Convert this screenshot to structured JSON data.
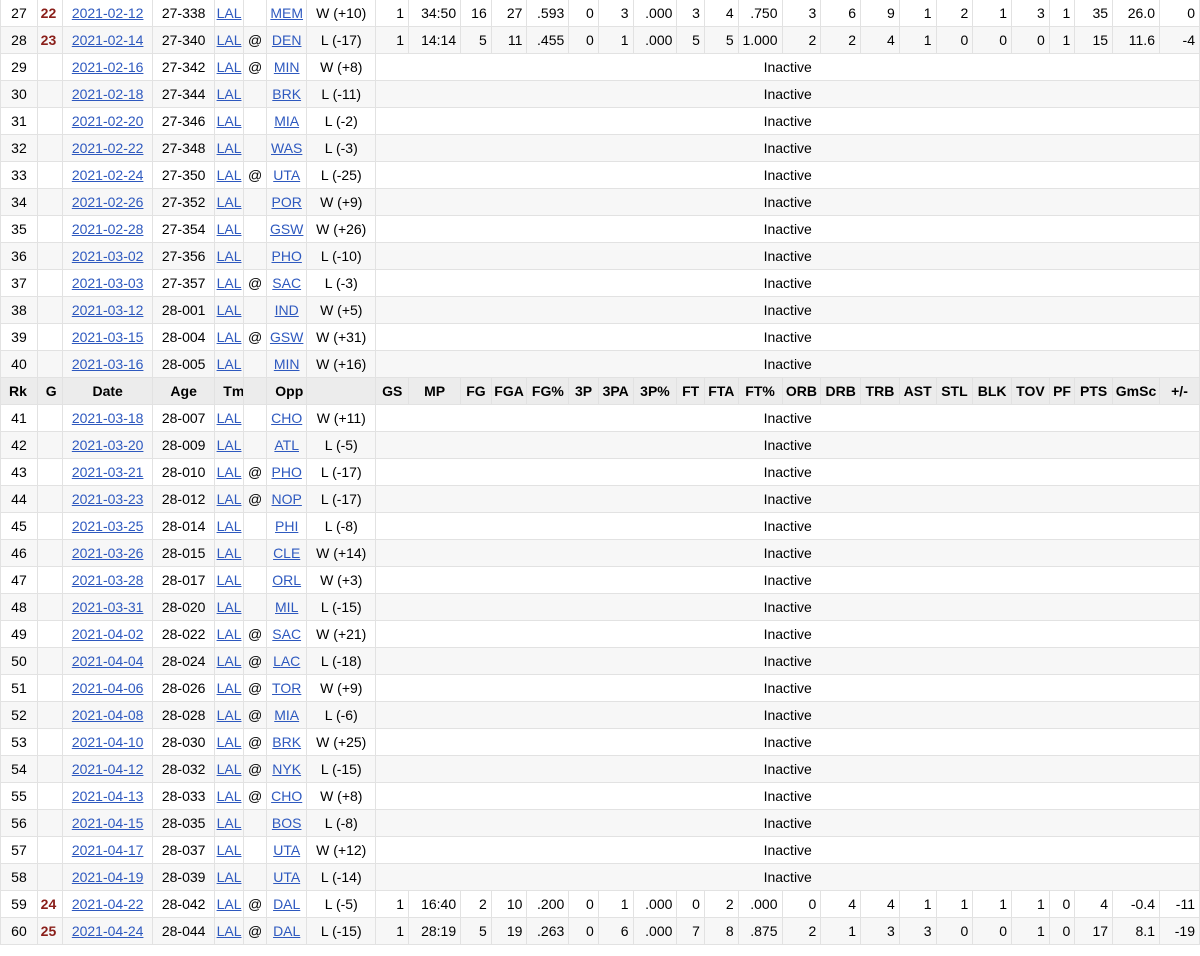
{
  "header": [
    "Rk",
    "G",
    "Date",
    "Age",
    "Tm",
    "",
    "Opp",
    "",
    "GS",
    "MP",
    "FG",
    "FGA",
    "FG%",
    "3P",
    "3PA",
    "3P%",
    "FT",
    "FTA",
    "FT%",
    "ORB",
    "DRB",
    "TRB",
    "AST",
    "STL",
    "BLK",
    "TOV",
    "PF",
    "PTS",
    "GmSc",
    "+/-"
  ],
  "inactive_label": "Inactive",
  "rows_top": [
    {
      "rk": "27",
      "g": "22",
      "date": "2021-02-12",
      "age": "27-338",
      "tm": "LAL",
      "at": "",
      "opp": "MEM",
      "res": "W (+10)",
      "stats": [
        "1",
        "34:50",
        "16",
        "27",
        ".593",
        "0",
        "3",
        ".000",
        "3",
        "4",
        ".750",
        "3",
        "6",
        "9",
        "1",
        "2",
        "1",
        "3",
        "1",
        "35",
        "26.0",
        "0"
      ]
    },
    {
      "rk": "28",
      "g": "23",
      "date": "2021-02-14",
      "age": "27-340",
      "tm": "LAL",
      "at": "@",
      "opp": "DEN",
      "res": "L (-17)",
      "stats": [
        "1",
        "14:14",
        "5",
        "11",
        ".455",
        "0",
        "1",
        ".000",
        "5",
        "5",
        "1.000",
        "2",
        "2",
        "4",
        "1",
        "0",
        "0",
        "0",
        "1",
        "15",
        "11.6",
        "-4"
      ]
    },
    {
      "rk": "29",
      "g": "",
      "date": "2021-02-16",
      "age": "27-342",
      "tm": "LAL",
      "at": "@",
      "opp": "MIN",
      "res": "W (+8)",
      "stats": null
    },
    {
      "rk": "30",
      "g": "",
      "date": "2021-02-18",
      "age": "27-344",
      "tm": "LAL",
      "at": "",
      "opp": "BRK",
      "res": "L (-11)",
      "stats": null
    },
    {
      "rk": "31",
      "g": "",
      "date": "2021-02-20",
      "age": "27-346",
      "tm": "LAL",
      "at": "",
      "opp": "MIA",
      "res": "L (-2)",
      "stats": null
    },
    {
      "rk": "32",
      "g": "",
      "date": "2021-02-22",
      "age": "27-348",
      "tm": "LAL",
      "at": "",
      "opp": "WAS",
      "res": "L (-3)",
      "stats": null
    },
    {
      "rk": "33",
      "g": "",
      "date": "2021-02-24",
      "age": "27-350",
      "tm": "LAL",
      "at": "@",
      "opp": "UTA",
      "res": "L (-25)",
      "stats": null
    },
    {
      "rk": "34",
      "g": "",
      "date": "2021-02-26",
      "age": "27-352",
      "tm": "LAL",
      "at": "",
      "opp": "POR",
      "res": "W (+9)",
      "stats": null
    },
    {
      "rk": "35",
      "g": "",
      "date": "2021-02-28",
      "age": "27-354",
      "tm": "LAL",
      "at": "",
      "opp": "GSW",
      "res": "W (+26)",
      "stats": null
    },
    {
      "rk": "36",
      "g": "",
      "date": "2021-03-02",
      "age": "27-356",
      "tm": "LAL",
      "at": "",
      "opp": "PHO",
      "res": "L (-10)",
      "stats": null
    },
    {
      "rk": "37",
      "g": "",
      "date": "2021-03-03",
      "age": "27-357",
      "tm": "LAL",
      "at": "@",
      "opp": "SAC",
      "res": "L (-3)",
      "stats": null
    },
    {
      "rk": "38",
      "g": "",
      "date": "2021-03-12",
      "age": "28-001",
      "tm": "LAL",
      "at": "",
      "opp": "IND",
      "res": "W (+5)",
      "stats": null
    },
    {
      "rk": "39",
      "g": "",
      "date": "2021-03-15",
      "age": "28-004",
      "tm": "LAL",
      "at": "@",
      "opp": "GSW",
      "res": "W (+31)",
      "stats": null
    },
    {
      "rk": "40",
      "g": "",
      "date": "2021-03-16",
      "age": "28-005",
      "tm": "LAL",
      "at": "",
      "opp": "MIN",
      "res": "W (+16)",
      "stats": null
    }
  ],
  "rows_bottom": [
    {
      "rk": "41",
      "g": "",
      "date": "2021-03-18",
      "age": "28-007",
      "tm": "LAL",
      "at": "",
      "opp": "CHO",
      "res": "W (+11)",
      "stats": null
    },
    {
      "rk": "42",
      "g": "",
      "date": "2021-03-20",
      "age": "28-009",
      "tm": "LAL",
      "at": "",
      "opp": "ATL",
      "res": "L (-5)",
      "stats": null
    },
    {
      "rk": "43",
      "g": "",
      "date": "2021-03-21",
      "age": "28-010",
      "tm": "LAL",
      "at": "@",
      "opp": "PHO",
      "res": "L (-17)",
      "stats": null
    },
    {
      "rk": "44",
      "g": "",
      "date": "2021-03-23",
      "age": "28-012",
      "tm": "LAL",
      "at": "@",
      "opp": "NOP",
      "res": "L (-17)",
      "stats": null
    },
    {
      "rk": "45",
      "g": "",
      "date": "2021-03-25",
      "age": "28-014",
      "tm": "LAL",
      "at": "",
      "opp": "PHI",
      "res": "L (-8)",
      "stats": null
    },
    {
      "rk": "46",
      "g": "",
      "date": "2021-03-26",
      "age": "28-015",
      "tm": "LAL",
      "at": "",
      "opp": "CLE",
      "res": "W (+14)",
      "stats": null
    },
    {
      "rk": "47",
      "g": "",
      "date": "2021-03-28",
      "age": "28-017",
      "tm": "LAL",
      "at": "",
      "opp": "ORL",
      "res": "W (+3)",
      "stats": null
    },
    {
      "rk": "48",
      "g": "",
      "date": "2021-03-31",
      "age": "28-020",
      "tm": "LAL",
      "at": "",
      "opp": "MIL",
      "res": "L (-15)",
      "stats": null
    },
    {
      "rk": "49",
      "g": "",
      "date": "2021-04-02",
      "age": "28-022",
      "tm": "LAL",
      "at": "@",
      "opp": "SAC",
      "res": "W (+21)",
      "stats": null
    },
    {
      "rk": "50",
      "g": "",
      "date": "2021-04-04",
      "age": "28-024",
      "tm": "LAL",
      "at": "@",
      "opp": "LAC",
      "res": "L (-18)",
      "stats": null
    },
    {
      "rk": "51",
      "g": "",
      "date": "2021-04-06",
      "age": "28-026",
      "tm": "LAL",
      "at": "@",
      "opp": "TOR",
      "res": "W (+9)",
      "stats": null
    },
    {
      "rk": "52",
      "g": "",
      "date": "2021-04-08",
      "age": "28-028",
      "tm": "LAL",
      "at": "@",
      "opp": "MIA",
      "res": "L (-6)",
      "stats": null
    },
    {
      "rk": "53",
      "g": "",
      "date": "2021-04-10",
      "age": "28-030",
      "tm": "LAL",
      "at": "@",
      "opp": "BRK",
      "res": "W (+25)",
      "stats": null
    },
    {
      "rk": "54",
      "g": "",
      "date": "2021-04-12",
      "age": "28-032",
      "tm": "LAL",
      "at": "@",
      "opp": "NYK",
      "res": "L (-15)",
      "stats": null
    },
    {
      "rk": "55",
      "g": "",
      "date": "2021-04-13",
      "age": "28-033",
      "tm": "LAL",
      "at": "@",
      "opp": "CHO",
      "res": "W (+8)",
      "stats": null
    },
    {
      "rk": "56",
      "g": "",
      "date": "2021-04-15",
      "age": "28-035",
      "tm": "LAL",
      "at": "",
      "opp": "BOS",
      "res": "L (-8)",
      "stats": null
    },
    {
      "rk": "57",
      "g": "",
      "date": "2021-04-17",
      "age": "28-037",
      "tm": "LAL",
      "at": "",
      "opp": "UTA",
      "res": "W (+12)",
      "stats": null
    },
    {
      "rk": "58",
      "g": "",
      "date": "2021-04-19",
      "age": "28-039",
      "tm": "LAL",
      "at": "",
      "opp": "UTA",
      "res": "L (-14)",
      "stats": null
    },
    {
      "rk": "59",
      "g": "24",
      "date": "2021-04-22",
      "age": "28-042",
      "tm": "LAL",
      "at": "@",
      "opp": "DAL",
      "res": "L (-5)",
      "stats": [
        "1",
        "16:40",
        "2",
        "10",
        ".200",
        "0",
        "1",
        ".000",
        "0",
        "2",
        ".000",
        "0",
        "4",
        "4",
        "1",
        "1",
        "1",
        "1",
        "0",
        "4",
        "-0.4",
        "-11"
      ]
    },
    {
      "rk": "60",
      "g": "25",
      "date": "2021-04-24",
      "age": "28-044",
      "tm": "LAL",
      "at": "@",
      "opp": "DAL",
      "res": "L (-15)",
      "stats": [
        "1",
        "28:19",
        "5",
        "19",
        ".263",
        "0",
        "6",
        ".000",
        "7",
        "8",
        ".875",
        "2",
        "1",
        "3",
        "3",
        "0",
        "0",
        "1",
        "0",
        "17",
        "8.1",
        "-19"
      ]
    }
  ],
  "colors": {
    "link": "#2e59bf",
    "games_played": "#8a1f1a",
    "header_bg": "#ececec",
    "stripe": "#f7f7f7"
  }
}
